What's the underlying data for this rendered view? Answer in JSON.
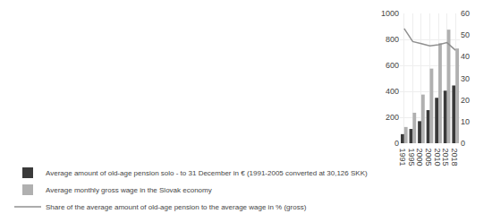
{
  "chart_data": {
    "type": "bar",
    "categories": [
      "1991",
      "1995",
      "2000",
      "2005",
      "2010",
      "2015",
      "2018"
    ],
    "series": [
      {
        "name": "Average amount of old-age pension solo - to 31 December in € (1991-2005 converted at 30,126 SKK)",
        "color": "#3a3a3a",
        "values": [
          70,
          110,
          170,
          255,
          350,
          405,
          445
        ]
      },
      {
        "name": "Average monthly gross wage in the Slovak economy",
        "color": "#b0b0b0",
        "values": [
          125,
          235,
          375,
          575,
          770,
          875,
          730
        ]
      },
      {
        "name": "Share of the average amount of old-age pension to the average wage in % (gross)",
        "color": "#909090",
        "type": "line",
        "axis": "y2",
        "values": [
          53,
          47,
          46,
          45,
          45.5,
          46.5,
          43
        ]
      }
    ],
    "ylim": [
      0,
      1000
    ],
    "yticks": [
      0,
      200,
      400,
      600,
      800,
      1000
    ],
    "y2lim": [
      0,
      60
    ],
    "y2ticks": [
      0,
      10,
      20,
      30,
      40,
      50,
      60
    ],
    "grid": true,
    "legend": "lower left"
  }
}
